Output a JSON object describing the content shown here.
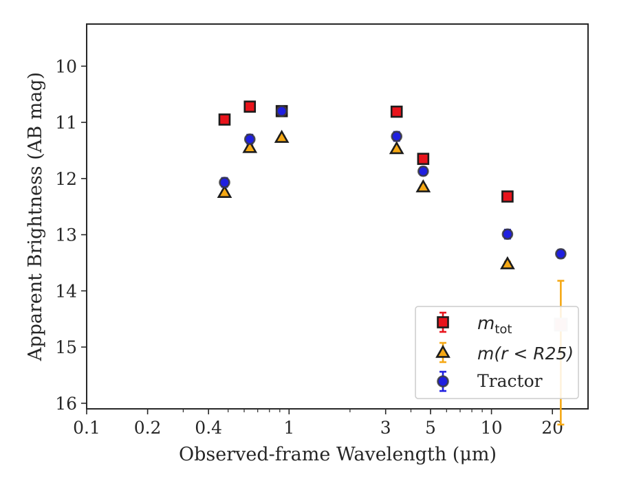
{
  "chart_data": {
    "type": "scatter",
    "xlabel": "Observed-frame Wavelength (μm)",
    "ylabel": "Apparent Brightness (AB mag)",
    "xscale": "log",
    "xlim": [
      0.1,
      30
    ],
    "ylim": [
      16.1,
      9.25
    ],
    "y_inverted": true,
    "xticks": [
      0.1,
      0.2,
      0.4,
      1,
      3,
      5,
      10,
      20
    ],
    "xtick_labels": [
      "0.1",
      "0.2",
      "0.4",
      "1",
      "3",
      "5",
      "10",
      "20"
    ],
    "yticks": [
      10,
      11,
      12,
      13,
      14,
      15,
      16
    ],
    "ytick_labels": [
      "10",
      "11",
      "12",
      "13",
      "14",
      "15",
      "16"
    ],
    "grid": false,
    "legend_position": "lower-right",
    "series": [
      {
        "key": "mtot",
        "legend_base": "m",
        "legend_sub": "tot",
        "marker": "square",
        "color": "#e8141c",
        "edge": "#1c1c1c",
        "points": [
          {
            "x": 0.48,
            "y": 10.95,
            "err": 0.03
          },
          {
            "x": 0.64,
            "y": 10.72,
            "err": 0.03
          },
          {
            "x": 0.92,
            "y": 10.8,
            "err": 0.03
          },
          {
            "x": 3.4,
            "y": 10.81,
            "err": 0.03
          },
          {
            "x": 4.6,
            "y": 11.65,
            "err": 0.03
          },
          {
            "x": 12.0,
            "y": 12.32,
            "err": 0.04
          },
          {
            "x": 22.0,
            "y": 14.6,
            "err": 0.78,
            "faded": true
          }
        ]
      },
      {
        "key": "mr25",
        "legend_text": "m(r < R25)",
        "marker": "triangle",
        "color": "#f5a814",
        "edge": "#1c1c1c",
        "points": [
          {
            "x": 0.48,
            "y": 12.25,
            "err": 0.03
          },
          {
            "x": 0.64,
            "y": 11.45,
            "err": 0.03
          },
          {
            "x": 0.92,
            "y": 11.27,
            "err": 0.03
          },
          {
            "x": 3.4,
            "y": 11.47,
            "err": 0.03
          },
          {
            "x": 4.6,
            "y": 12.15,
            "err": 0.03
          },
          {
            "x": 12.0,
            "y": 13.52,
            "err": 0.04
          }
        ]
      },
      {
        "key": "tractor",
        "name": "Tractor",
        "marker": "circle",
        "color": "#1f1fe0",
        "edge": "#3a3a3a",
        "points": [
          {
            "x": 0.48,
            "y": 12.07,
            "err": 0.08
          },
          {
            "x": 0.64,
            "y": 11.3,
            "err": 0.08
          },
          {
            "x": 0.92,
            "y": 10.8,
            "err": 0.06
          },
          {
            "x": 3.4,
            "y": 11.25,
            "err": 0.08
          },
          {
            "x": 4.6,
            "y": 11.87,
            "err": 0.07
          },
          {
            "x": 12.0,
            "y": 12.99,
            "err": 0.08
          },
          {
            "x": 22.0,
            "y": 13.34,
            "err": 0.07
          }
        ]
      }
    ]
  }
}
